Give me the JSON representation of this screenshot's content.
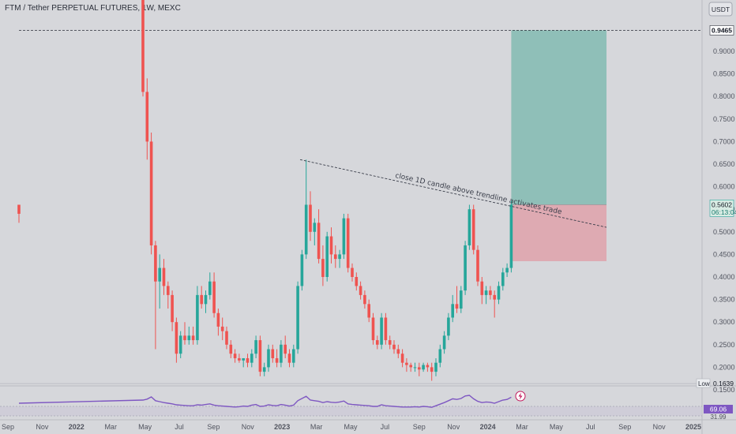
{
  "header": {
    "title": "FTM / Tether PERPETUAL FUTURES, 1W, MEXC",
    "currency_button": "USDT"
  },
  "price_axis": {
    "ticks": [
      "0.9000",
      "0.8500",
      "0.8000",
      "0.7500",
      "0.7000",
      "0.6500",
      "0.6000",
      "0.5500",
      "0.5000",
      "0.4500",
      "0.4000",
      "0.3500",
      "0.3000",
      "0.2500",
      "0.2000",
      "0.1500"
    ],
    "target_label": "0.9465",
    "last_price_label": "0.5602",
    "countdown_label": "06:13:04",
    "low_tag": "Low",
    "low_label": "0.1639"
  },
  "rsi": {
    "value_label": "69.06",
    "second_label": "31.99"
  },
  "x_axis": {
    "labels": [
      "Sep",
      "Nov",
      "2022",
      "Mar",
      "May",
      "Jul",
      "Sep",
      "Nov",
      "2023",
      "Mar",
      "May",
      "Jul",
      "Sep",
      "Nov",
      "2024",
      "Mar",
      "May",
      "Jul",
      "Sep",
      "Nov",
      "2025"
    ]
  },
  "annotations": {
    "trendline_text": "close 1D candle above trendline activates trade"
  },
  "colors": {
    "up": "#26a69a",
    "down": "#ef5350",
    "target_zone": "#8fbfb8",
    "stop_zone": "#deaab2",
    "rsi_line": "#7e57c2",
    "background": "#d6d7db"
  },
  "chart_data": {
    "type": "candlestick",
    "symbol": "FTM / Tether PERPETUAL FUTURES",
    "interval": "1W",
    "exchange": "MEXC",
    "ylim": [
      0.14,
      1.0
    ],
    "candles": [
      [
        0.56,
        0.56,
        0.52,
        0.54
      ],
      [
        1.02,
        1.02,
        0.8,
        0.81
      ],
      [
        0.81,
        0.84,
        0.66,
        0.7
      ],
      [
        0.7,
        0.72,
        0.45,
        0.47
      ],
      [
        0.47,
        0.48,
        0.24,
        0.39
      ],
      [
        0.39,
        0.45,
        0.33,
        0.42
      ],
      [
        0.42,
        0.44,
        0.36,
        0.38
      ],
      [
        0.38,
        0.39,
        0.33,
        0.36
      ],
      [
        0.36,
        0.37,
        0.28,
        0.3
      ],
      [
        0.3,
        0.31,
        0.21,
        0.23
      ],
      [
        0.23,
        0.28,
        0.22,
        0.27
      ],
      [
        0.27,
        0.3,
        0.25,
        0.26
      ],
      [
        0.26,
        0.29,
        0.25,
        0.27
      ],
      [
        0.27,
        0.29,
        0.25,
        0.26
      ],
      [
        0.26,
        0.38,
        0.25,
        0.36
      ],
      [
        0.36,
        0.38,
        0.33,
        0.34
      ],
      [
        0.34,
        0.37,
        0.32,
        0.36
      ],
      [
        0.36,
        0.41,
        0.35,
        0.39
      ],
      [
        0.39,
        0.41,
        0.31,
        0.32
      ],
      [
        0.32,
        0.33,
        0.27,
        0.29
      ],
      [
        0.29,
        0.31,
        0.26,
        0.28
      ],
      [
        0.28,
        0.29,
        0.24,
        0.25
      ],
      [
        0.25,
        0.26,
        0.22,
        0.23
      ],
      [
        0.23,
        0.24,
        0.21,
        0.22
      ],
      [
        0.22,
        0.23,
        0.21,
        0.215
      ],
      [
        0.215,
        0.22,
        0.2,
        0.22
      ],
      [
        0.22,
        0.23,
        0.2,
        0.21
      ],
      [
        0.21,
        0.24,
        0.2,
        0.23
      ],
      [
        0.23,
        0.27,
        0.22,
        0.26
      ],
      [
        0.26,
        0.27,
        0.18,
        0.19
      ],
      [
        0.19,
        0.21,
        0.18,
        0.2
      ],
      [
        0.2,
        0.25,
        0.19,
        0.24
      ],
      [
        0.24,
        0.25,
        0.21,
        0.22
      ],
      [
        0.22,
        0.24,
        0.2,
        0.21
      ],
      [
        0.21,
        0.26,
        0.2,
        0.25
      ],
      [
        0.25,
        0.27,
        0.22,
        0.23
      ],
      [
        0.23,
        0.24,
        0.2,
        0.21
      ],
      [
        0.21,
        0.25,
        0.2,
        0.24
      ],
      [
        0.24,
        0.39,
        0.23,
        0.38
      ],
      [
        0.38,
        0.46,
        0.37,
        0.45
      ],
      [
        0.45,
        0.66,
        0.44,
        0.56
      ],
      [
        0.56,
        0.59,
        0.48,
        0.5
      ],
      [
        0.5,
        0.53,
        0.47,
        0.52
      ],
      [
        0.52,
        0.55,
        0.43,
        0.44
      ],
      [
        0.44,
        0.47,
        0.38,
        0.4
      ],
      [
        0.4,
        0.5,
        0.39,
        0.49
      ],
      [
        0.49,
        0.51,
        0.43,
        0.45
      ],
      [
        0.45,
        0.47,
        0.42,
        0.44
      ],
      [
        0.44,
        0.46,
        0.42,
        0.45
      ],
      [
        0.45,
        0.54,
        0.44,
        0.53
      ],
      [
        0.53,
        0.54,
        0.41,
        0.42
      ],
      [
        0.42,
        0.43,
        0.39,
        0.4
      ],
      [
        0.4,
        0.41,
        0.37,
        0.38
      ],
      [
        0.38,
        0.39,
        0.35,
        0.36
      ],
      [
        0.36,
        0.37,
        0.33,
        0.34
      ],
      [
        0.34,
        0.35,
        0.3,
        0.31
      ],
      [
        0.31,
        0.32,
        0.25,
        0.26
      ],
      [
        0.26,
        0.27,
        0.24,
        0.25
      ],
      [
        0.25,
        0.32,
        0.24,
        0.31
      ],
      [
        0.31,
        0.32,
        0.25,
        0.26
      ],
      [
        0.26,
        0.27,
        0.24,
        0.25
      ],
      [
        0.25,
        0.26,
        0.23,
        0.24
      ],
      [
        0.24,
        0.25,
        0.22,
        0.23
      ],
      [
        0.23,
        0.24,
        0.2,
        0.21
      ],
      [
        0.21,
        0.22,
        0.19,
        0.205
      ],
      [
        0.205,
        0.21,
        0.19,
        0.2
      ],
      [
        0.2,
        0.21,
        0.19,
        0.2
      ],
      [
        0.2,
        0.21,
        0.18,
        0.195
      ],
      [
        0.195,
        0.21,
        0.19,
        0.205
      ],
      [
        0.205,
        0.21,
        0.19,
        0.2
      ],
      [
        0.2,
        0.21,
        0.17,
        0.19
      ],
      [
        0.19,
        0.22,
        0.18,
        0.21
      ],
      [
        0.21,
        0.25,
        0.2,
        0.24
      ],
      [
        0.24,
        0.28,
        0.23,
        0.27
      ],
      [
        0.27,
        0.32,
        0.26,
        0.31
      ],
      [
        0.31,
        0.36,
        0.3,
        0.34
      ],
      [
        0.34,
        0.38,
        0.32,
        0.33
      ],
      [
        0.33,
        0.38,
        0.32,
        0.37
      ],
      [
        0.37,
        0.48,
        0.36,
        0.47
      ],
      [
        0.47,
        0.56,
        0.46,
        0.55
      ],
      [
        0.55,
        0.56,
        0.45,
        0.46
      ],
      [
        0.46,
        0.47,
        0.38,
        0.39
      ],
      [
        0.39,
        0.4,
        0.34,
        0.36
      ],
      [
        0.36,
        0.38,
        0.34,
        0.37
      ],
      [
        0.37,
        0.38,
        0.35,
        0.36
      ],
      [
        0.36,
        0.37,
        0.31,
        0.35
      ],
      [
        0.35,
        0.39,
        0.34,
        0.38
      ],
      [
        0.38,
        0.42,
        0.37,
        0.41
      ],
      [
        0.41,
        0.43,
        0.4,
        0.42
      ],
      [
        0.42,
        0.57,
        0.41,
        0.5602
      ]
    ],
    "trendline": {
      "from_price": 0.66,
      "to_price": 0.51
    },
    "position": {
      "entry": 0.5602,
      "target": 0.9465,
      "stop": 0.435
    },
    "target_line": 0.9465,
    "low": 0.1639,
    "rsi": {
      "last": 69.06,
      "ylim": [
        0,
        100
      ],
      "values": [
        50,
        60,
        63,
        70,
        58,
        55,
        52,
        50,
        48,
        45,
        44,
        43,
        42,
        42,
        45,
        44,
        46,
        48,
        44,
        42,
        41,
        40,
        39,
        38,
        39,
        41,
        40,
        44,
        46,
        40,
        41,
        45,
        43,
        42,
        46,
        44,
        41,
        44,
        58,
        65,
        72,
        60,
        58,
        56,
        52,
        55,
        53,
        52,
        54,
        57,
        48,
        46,
        45,
        44,
        43,
        42,
        40,
        40,
        45,
        42,
        41,
        40,
        39,
        38,
        38,
        38,
        39,
        38,
        40,
        39,
        37,
        42,
        47,
        52,
        58,
        64,
        62,
        65,
        73,
        75,
        64,
        56,
        52,
        54,
        53,
        50,
        55,
        60,
        62,
        69.06
      ]
    }
  }
}
